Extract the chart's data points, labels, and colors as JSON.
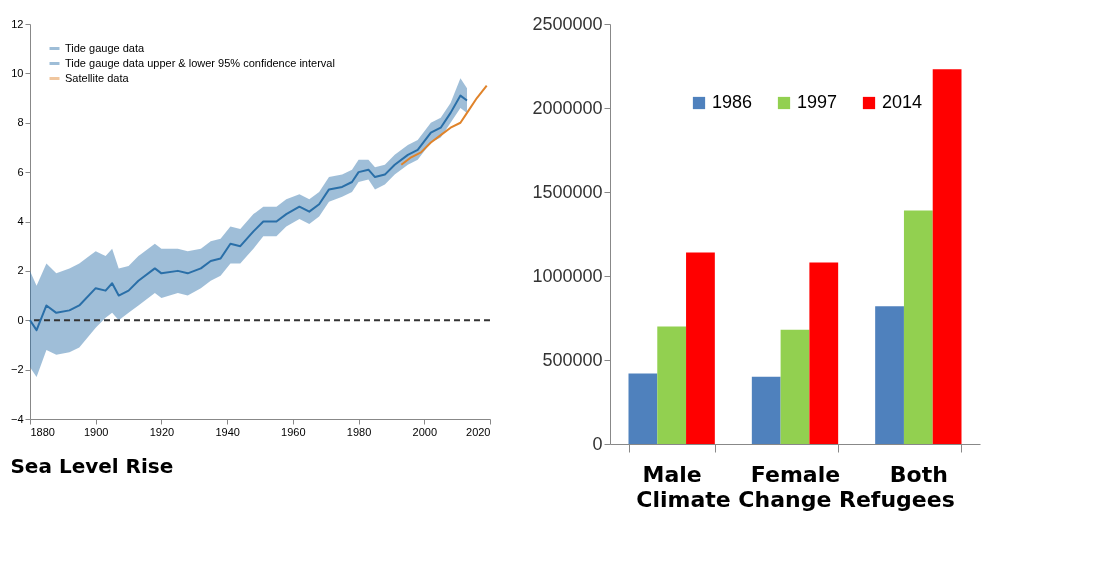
{
  "chart_data": [
    {
      "type": "line",
      "title": "Sea Level Rise",
      "annotations": [
        "Tide gauge data upper & lower 95% confidence interval"
      ],
      "xlim": [
        1880,
        2020
      ],
      "xticks": [
        1880,
        1900,
        1920,
        1940,
        1960,
        1980,
        2000,
        2020
      ],
      "ylim": [
        -4,
        12
      ],
      "yticks": [
        -4,
        -2,
        0,
        2,
        4,
        6,
        8,
        10,
        12
      ],
      "grid": false,
      "legend": "top left",
      "line_style": "solid",
      "ref_lines": [
        {
          "axis": "y",
          "value": 0,
          "color": "#333333",
          "line_style": "dashed"
        }
      ],
      "series": [
        {
          "name": "Tide gauge data",
          "color": "#2a6fa8",
          "x": [
            1880,
            1882,
            1885,
            1888,
            1892,
            1895,
            1900,
            1903,
            1905,
            1907,
            1910,
            1913,
            1918,
            1920,
            1925,
            1928,
            1932,
            1935,
            1938,
            1941,
            1944,
            1948,
            1951,
            1955,
            1958,
            1962,
            1965,
            1968,
            1971,
            1975,
            1978,
            1980,
            1983,
            1985,
            1988,
            1991,
            1995,
            1998,
            2002,
            2005,
            2008,
            2011,
            2013
          ],
          "values": [
            0.0,
            -0.4,
            0.6,
            0.3,
            0.4,
            0.6,
            1.3,
            1.2,
            1.5,
            1.0,
            1.2,
            1.6,
            2.1,
            1.9,
            2.0,
            1.9,
            2.1,
            2.4,
            2.5,
            3.1,
            3.0,
            3.6,
            4.0,
            4.0,
            4.3,
            4.6,
            4.4,
            4.7,
            5.3,
            5.4,
            5.6,
            6.0,
            6.1,
            5.8,
            5.9,
            6.3,
            6.7,
            6.9,
            7.6,
            7.8,
            8.4,
            9.1,
            8.9
          ],
          "lower": [
            -1.9,
            -2.3,
            -1.2,
            -1.4,
            -1.3,
            -1.1,
            -0.3,
            0.1,
            0.3,
            0.0,
            0.3,
            0.6,
            1.1,
            0.9,
            1.1,
            1.0,
            1.3,
            1.6,
            1.8,
            2.3,
            2.3,
            2.9,
            3.4,
            3.4,
            3.8,
            4.1,
            3.9,
            4.2,
            4.8,
            5.0,
            5.2,
            5.6,
            5.7,
            5.3,
            5.5,
            5.9,
            6.3,
            6.5,
            7.2,
            7.4,
            8.0,
            8.6,
            8.4
          ],
          "upper": [
            2.0,
            1.4,
            2.3,
            1.9,
            2.1,
            2.3,
            2.8,
            2.6,
            2.9,
            2.1,
            2.2,
            2.6,
            3.1,
            2.9,
            2.9,
            2.8,
            2.9,
            3.2,
            3.3,
            3.8,
            3.7,
            4.3,
            4.6,
            4.6,
            4.9,
            5.1,
            4.9,
            5.2,
            5.8,
            5.9,
            6.1,
            6.5,
            6.5,
            6.2,
            6.3,
            6.7,
            7.1,
            7.3,
            8.0,
            8.2,
            8.8,
            9.8,
            9.4
          ]
        },
        {
          "name": "Satellite data",
          "color": "#e0832a",
          "x": [
            1993,
            1996,
            1999,
            2002,
            2005,
            2008,
            2011,
            2013,
            2016,
            2019
          ],
          "values": [
            6.3,
            6.6,
            6.8,
            7.2,
            7.5,
            7.8,
            8.0,
            8.4,
            9.0,
            9.5
          ]
        }
      ]
    },
    {
      "type": "bar",
      "xlabel": "Climate Change Refugees",
      "categories": [
        "Male",
        "Female",
        "Both"
      ],
      "ylim": [
        0,
        2500000
      ],
      "yticks": [
        0,
        500000,
        1000000,
        1500000,
        2000000,
        2500000
      ],
      "grid": false,
      "legend": "top",
      "series": [
        {
          "name": "1986",
          "color": "#4f81bd",
          "values": [
            420000,
            400000,
            820000
          ]
        },
        {
          "name": "1997",
          "color": "#92d050",
          "values": [
            700000,
            680000,
            1390000
          ]
        },
        {
          "name": "2014",
          "color": "#ff0000",
          "values": [
            1140000,
            1080000,
            2230000
          ]
        }
      ]
    }
  ]
}
